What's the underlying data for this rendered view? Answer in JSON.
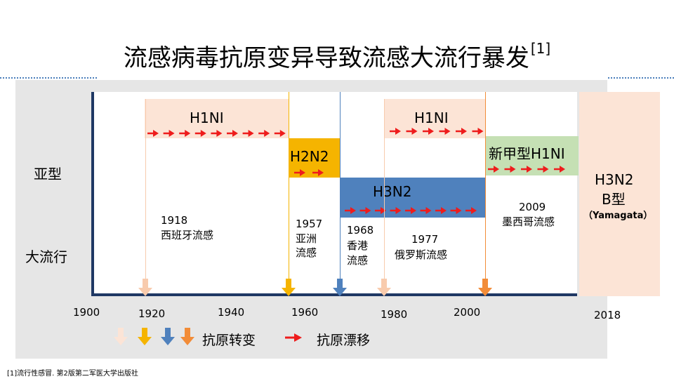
{
  "title": "流感病毒抗原变异导致流感大流行暴发",
  "title_ref": "[1]",
  "row_labels": {
    "subtype": "亚型",
    "pandemic": "大流行"
  },
  "x_ticks": [
    "1900",
    "1920",
    "1940",
    "1960",
    "1980",
    "2000",
    "2018"
  ],
  "subtypes": [
    {
      "label": "H1NI",
      "color": "#fce4d6",
      "arrows": 9
    },
    {
      "label": "H2N2",
      "color": "#f5b400",
      "arrows": 2
    },
    {
      "label": "H3N2",
      "color": "#4f81bd",
      "arrows": 9
    },
    {
      "label": "H1NI",
      "color": "#fce4d6",
      "arrows": 6
    },
    {
      "label": "新甲型H1NI",
      "color": "#c5e0b4",
      "arrows": 5
    },
    {
      "label": "H3N2",
      "label2": "B型",
      "label3": "（Yamagata）",
      "color": "#fce4d6"
    }
  ],
  "pandemics": [
    {
      "year": "1918",
      "name": "西班牙流感",
      "arrow_color": "#f8cbad"
    },
    {
      "year": "1957",
      "name": "亚洲",
      "name2": "流感",
      "arrow_color": "#f5b400"
    },
    {
      "year": "1968",
      "name": "香港",
      "name2": "流感",
      "arrow_color": "#4f81bd"
    },
    {
      "year": "1977",
      "name": "俄罗斯流感",
      "arrow_color": "#f8cbad"
    },
    {
      "year": "2009",
      "name": "墨西哥流感",
      "arrow_color": "#f28c38"
    }
  ],
  "legend": {
    "shift_label": "抗原转变",
    "drift_label": "抗原漂移",
    "shift_colors": [
      "#fce4d6",
      "#f5b400",
      "#4f81bd",
      "#f28c38"
    ],
    "drift_color": "#ee1c1c"
  },
  "footnote": "[1]流行性感冒. 第2版第二军医大学出版社"
}
